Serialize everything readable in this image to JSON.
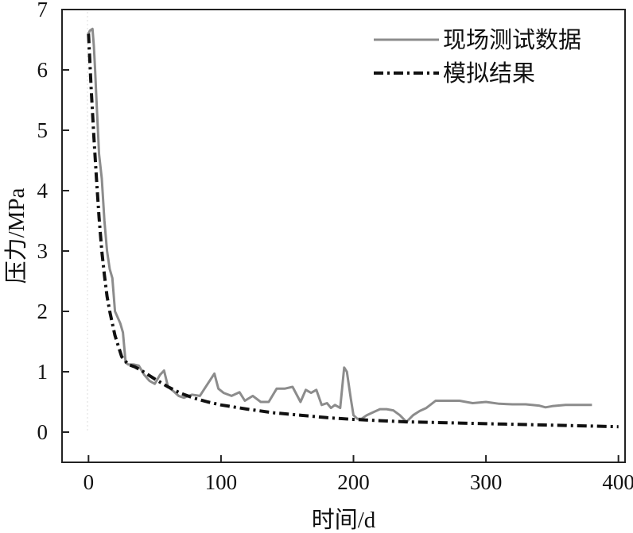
{
  "chart_data": {
    "type": "line",
    "title": "",
    "xlabel": "时间/d",
    "ylabel": "压力/MPa",
    "xlim": [
      -20,
      405
    ],
    "ylim": [
      -0.5,
      7
    ],
    "xticks": [
      0,
      100,
      200,
      300,
      400
    ],
    "yticks": [
      0,
      1,
      2,
      3,
      4,
      5,
      6,
      7
    ],
    "xtick_labels": [
      "0",
      "100",
      "200",
      "300",
      "400"
    ],
    "ytick_labels": [
      "0",
      "1",
      "2",
      "3",
      "4",
      "5",
      "6",
      "7"
    ],
    "grid": false,
    "legend_position": "top-right",
    "series": [
      {
        "name": "现场测试数据",
        "style": "solid",
        "color": "#8c8c8c",
        "x": [
          0,
          1,
          3,
          4,
          5,
          6,
          8,
          10,
          12,
          14,
          16,
          18,
          20,
          22,
          24,
          26,
          28,
          30,
          34,
          38,
          42,
          46,
          50,
          54,
          57,
          60,
          64,
          68,
          72,
          78,
          84,
          90,
          95,
          98,
          102,
          108,
          114,
          118,
          124,
          130,
          136,
          142,
          148,
          154,
          160,
          164,
          168,
          172,
          176,
          180,
          183,
          186,
          190,
          193,
          195,
          198,
          200,
          203,
          206,
          210,
          215,
          220,
          225,
          230,
          235,
          240,
          245,
          250,
          255,
          262,
          270,
          280,
          290,
          300,
          310,
          320,
          330,
          340,
          345,
          350,
          360,
          370,
          380
        ],
        "y": [
          6.6,
          6.65,
          6.68,
          6.4,
          6.0,
          5.5,
          4.6,
          4.2,
          3.5,
          3.0,
          2.7,
          2.55,
          2.0,
          1.9,
          1.8,
          1.65,
          1.15,
          1.12,
          1.12,
          1.1,
          0.95,
          0.85,
          0.8,
          0.95,
          1.02,
          0.75,
          0.68,
          0.6,
          0.57,
          0.62,
          0.6,
          0.8,
          0.97,
          0.72,
          0.65,
          0.6,
          0.66,
          0.52,
          0.6,
          0.5,
          0.5,
          0.72,
          0.72,
          0.75,
          0.5,
          0.7,
          0.65,
          0.7,
          0.45,
          0.48,
          0.4,
          0.45,
          0.4,
          1.07,
          1.0,
          0.55,
          0.28,
          0.22,
          0.22,
          0.28,
          0.33,
          0.38,
          0.38,
          0.36,
          0.28,
          0.17,
          0.28,
          0.35,
          0.4,
          0.52,
          0.52,
          0.52,
          0.48,
          0.5,
          0.47,
          0.46,
          0.46,
          0.44,
          0.41,
          0.43,
          0.45,
          0.45,
          0.45
        ]
      },
      {
        "name": "模拟结果",
        "style": "dash-dot",
        "color": "#111111",
        "x": [
          0,
          2,
          4,
          6,
          8,
          10,
          12,
          14,
          16,
          20,
          25,
          30,
          35,
          40,
          50,
          60,
          70,
          80,
          90,
          100,
          120,
          140,
          160,
          180,
          200,
          220,
          240,
          260,
          280,
          300,
          320,
          340,
          360,
          380,
          400
        ],
        "y": [
          6.6,
          5.7,
          4.9,
          4.2,
          3.55,
          3.0,
          2.6,
          2.25,
          2.0,
          1.6,
          1.25,
          1.12,
          1.08,
          1.02,
          0.88,
          0.75,
          0.64,
          0.56,
          0.5,
          0.45,
          0.38,
          0.32,
          0.28,
          0.24,
          0.21,
          0.19,
          0.17,
          0.16,
          0.15,
          0.14,
          0.13,
          0.12,
          0.11,
          0.1,
          0.09
        ]
      }
    ]
  }
}
